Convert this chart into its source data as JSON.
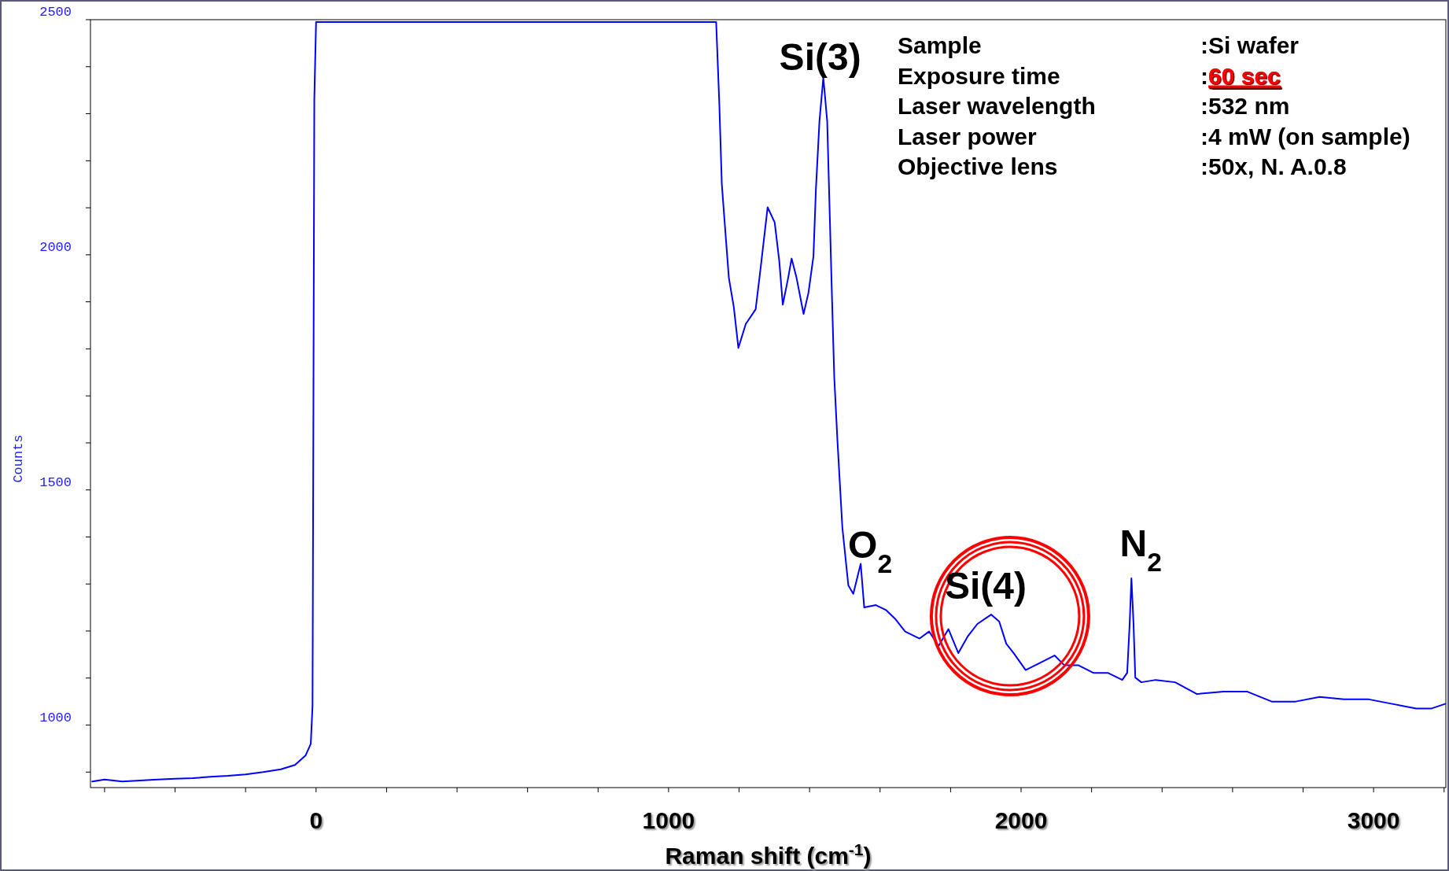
{
  "chart_data": {
    "type": "line",
    "xlabel": "Raman shift (cm$^{-1}$)",
    "ylabel": "Counts",
    "xlim": [
      -640,
      3205
    ],
    "ylim": [
      867,
      2500
    ],
    "xticks": [
      {
        "value": -600,
        "label": null
      },
      {
        "value": -400,
        "label": null
      },
      {
        "value": -200,
        "label": null
      },
      0,
      {
        "value": 200,
        "label": null
      },
      {
        "value": 400,
        "label": null
      },
      {
        "value": 600,
        "label": null
      },
      {
        "value": 800,
        "label": null
      },
      1000,
      {
        "value": 1200,
        "label": null
      },
      {
        "value": 1400,
        "label": null
      },
      {
        "value": 1600,
        "label": null
      },
      {
        "value": 1800,
        "label": null
      },
      2000,
      {
        "value": 2200,
        "label": null
      },
      {
        "value": 2400,
        "label": null
      },
      {
        "value": 2600,
        "label": null
      },
      {
        "value": 2800,
        "label": null
      },
      3000,
      {
        "value": 3200,
        "label": null
      }
    ],
    "yticks": [
      {
        "value": 900,
        "label": null
      },
      1000,
      {
        "value": 1100,
        "label": null
      },
      {
        "value": 1200,
        "label": null
      },
      {
        "value": 1300,
        "label": null
      },
      {
        "value": 1400,
        "label": null
      },
      1500,
      {
        "value": 1600,
        "label": null
      },
      {
        "value": 1700,
        "label": null
      },
      {
        "value": 1800,
        "label": null
      },
      {
        "value": 1900,
        "label": null
      },
      2000,
      {
        "value": 2100,
        "label": null
      },
      {
        "value": 2200,
        "label": null
      },
      {
        "value": 2300,
        "label": null
      },
      {
        "value": 2400,
        "label": null
      },
      2500
    ],
    "grid": false,
    "marker": "none",
    "line_style": "solid",
    "series": [
      {
        "color": "#0000ff",
        "x": [
          -635,
          -600,
          -550,
          -500,
          -450,
          -400,
          -350,
          -300,
          -250,
          -200,
          -150,
          -100,
          -60,
          -30,
          -15,
          -10,
          -5,
          0,
          400,
          800,
          1131,
          1135,
          1144,
          1151,
          1158,
          1171,
          1185,
          1198,
          1219,
          1247,
          1261,
          1281,
          1301,
          1314,
          1324,
          1338,
          1349,
          1363,
          1383,
          1397,
          1411,
          1418,
          1428,
          1439,
          1450,
          1463,
          1470,
          1479,
          1493,
          1510,
          1524,
          1545,
          1555,
          1588,
          1616,
          1644,
          1671,
          1712,
          1739,
          1766,
          1794,
          1822,
          1849,
          1876,
          1915,
          1938,
          1958,
          1979,
          2013,
          2053,
          2095,
          2123,
          2163,
          2205,
          2246,
          2287,
          2301,
          2308,
          2313,
          2319,
          2324,
          2341,
          2382,
          2437,
          2499,
          2574,
          2642,
          2711,
          2779,
          2847,
          2916,
          2984,
          3053,
          3121,
          3163,
          3203
        ],
        "values": [
          880,
          884,
          880,
          882,
          884,
          886,
          887,
          890,
          892,
          895,
          900,
          906,
          915,
          935,
          960,
          1041,
          2330,
          2495,
          2495,
          2495,
          2495,
          2495,
          2320,
          2151,
          2080,
          1951,
          1889,
          1802,
          1853,
          1884,
          1971,
          2101,
          2069,
          1987,
          1894,
          1946,
          1992,
          1951,
          1874,
          1920,
          1997,
          2140,
          2284,
          2377,
          2284,
          1925,
          1740,
          1605,
          1420,
          1297,
          1279,
          1343,
          1250,
          1255,
          1245,
          1225,
          1199,
          1184,
          1199,
          1168,
          1204,
          1153,
          1189,
          1215,
          1235,
          1220,
          1173,
          1153,
          1117,
          1132,
          1148,
          1127,
          1127,
          1111,
          1111,
          1096,
          1111,
          1215,
          1312,
          1215,
          1101,
          1091,
          1096,
          1091,
          1066,
          1071,
          1071,
          1050,
          1050,
          1060,
          1055,
          1055,
          1045,
          1035,
          1035,
          1045
        ]
      }
    ],
    "annotations": [
      {
        "text": "Si(3)",
        "x": 1439,
        "y": 2377
      },
      {
        "text": "O$_{2}$",
        "x": 1545,
        "y": 1343
      },
      {
        "text": "Si(4)",
        "x": 1915,
        "y": 1235
      },
      {
        "text": "N$_{2}$",
        "x": 2313,
        "y": 1312
      },
      "Sample",
      ":Si wafer",
      "Exposure time",
      ":60 sec",
      "Laser wavelength",
      ":532 nm",
      "Laser power",
      ":4 mW (on sample)",
      "Objective lens",
      ":50x, N. A.0.8"
    ]
  }
}
